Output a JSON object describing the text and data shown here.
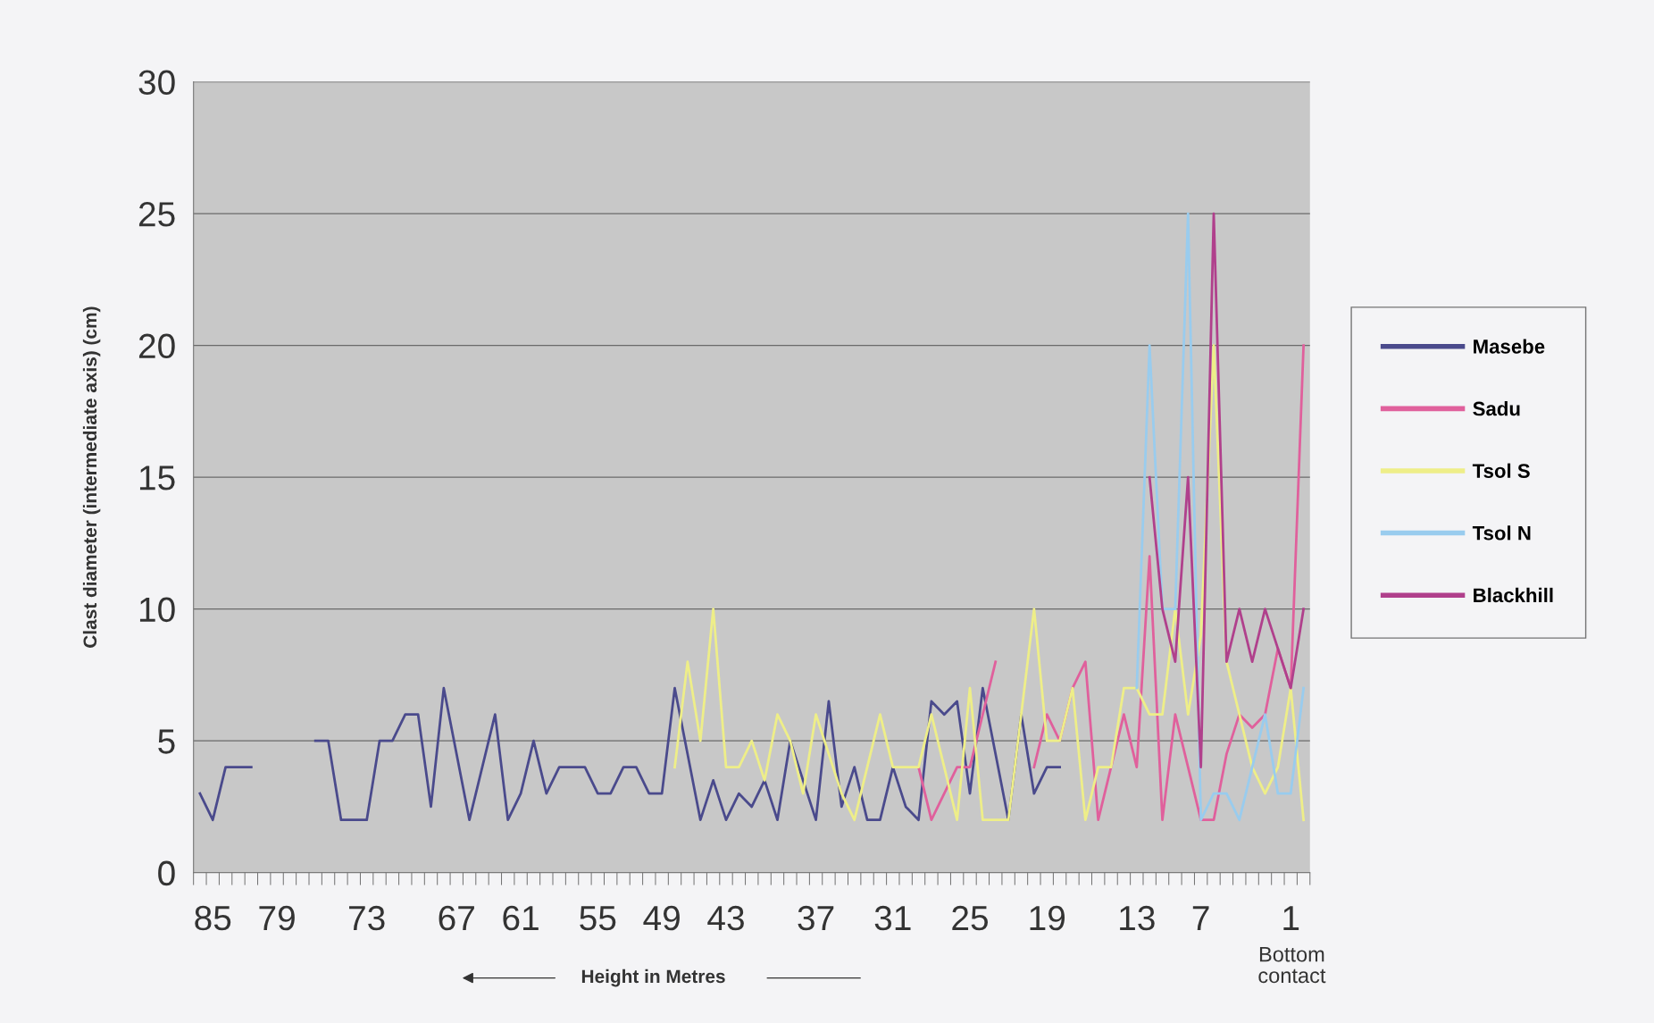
{
  "chart_data": {
    "type": "line",
    "ylabel": "Clast diameter (intermediate axis) (cm)",
    "xlabel": "Height in Metres",
    "categories": [
      null,
      "85",
      null,
      null,
      null,
      null,
      "79",
      null,
      null,
      null,
      null,
      null,
      null,
      "73",
      null,
      null,
      null,
      null,
      null,
      null,
      "67",
      null,
      null,
      null,
      null,
      "61",
      null,
      null,
      null,
      null,
      null,
      "55",
      null,
      null,
      null,
      null,
      "49",
      null,
      null,
      null,
      null,
      "43",
      null,
      null,
      null,
      null,
      null,
      null,
      "37",
      null,
      null,
      null,
      null,
      null,
      "31",
      null,
      null,
      null,
      null,
      null,
      "25",
      null,
      null,
      null,
      null,
      null,
      "19",
      null,
      null,
      null,
      null,
      null,
      null,
      "13",
      null,
      null,
      null,
      null,
      "7",
      null,
      null,
      null,
      null,
      null,
      null,
      "1",
      null
    ],
    "series": [
      {
        "name": "Masebe",
        "color": "#4a4a8c",
        "values": [
          3,
          2,
          4,
          4,
          4,
          null,
          null,
          null,
          null,
          5,
          5,
          2,
          2,
          2,
          5,
          5,
          6,
          6,
          2.5,
          7,
          4.5,
          2,
          4,
          6,
          2,
          3,
          5,
          3,
          4,
          4,
          4,
          3,
          3,
          4,
          4,
          3,
          3,
          7,
          4.5,
          2,
          3.5,
          2,
          3,
          2.5,
          3.5,
          2,
          5,
          3.5,
          2,
          6.5,
          2.5,
          4,
          2,
          2,
          4,
          2.5,
          2,
          6.5,
          6,
          6.5,
          3,
          7,
          4.5,
          2,
          6,
          3,
          4,
          4,
          null,
          null,
          null,
          null,
          null,
          null,
          null,
          null,
          null,
          null,
          null,
          null,
          null,
          null,
          null,
          null,
          null,
          null,
          null
        ]
      },
      {
        "name": "Sadu",
        "color": "#e0609c",
        "values": [
          null,
          null,
          null,
          null,
          null,
          null,
          null,
          null,
          null,
          null,
          null,
          null,
          null,
          null,
          null,
          null,
          null,
          null,
          null,
          null,
          null,
          null,
          null,
          null,
          null,
          null,
          null,
          null,
          null,
          null,
          null,
          null,
          null,
          null,
          null,
          null,
          null,
          null,
          null,
          null,
          null,
          null,
          null,
          null,
          null,
          null,
          null,
          null,
          null,
          null,
          null,
          null,
          null,
          null,
          null,
          null,
          4,
          2,
          3,
          4,
          4,
          6,
          8,
          null,
          null,
          4,
          6,
          5,
          7,
          8,
          2,
          4,
          6,
          4,
          12,
          2,
          6,
          4,
          2,
          2,
          4.5,
          6,
          5.5,
          6,
          8.5,
          7,
          20
        ]
      },
      {
        "name": "Tsol S",
        "color": "#eeee88",
        "values": [
          null,
          null,
          null,
          null,
          null,
          null,
          null,
          null,
          null,
          null,
          null,
          null,
          null,
          null,
          null,
          null,
          null,
          null,
          null,
          null,
          null,
          null,
          null,
          null,
          null,
          null,
          null,
          null,
          null,
          null,
          null,
          null,
          null,
          null,
          null,
          null,
          null,
          4,
          8,
          5,
          10,
          4,
          4,
          5,
          3.5,
          6,
          5,
          3,
          6,
          4.5,
          3,
          2,
          4,
          6,
          4,
          4,
          4,
          6,
          4,
          2,
          7,
          2,
          2,
          2,
          6,
          10,
          5,
          5,
          7,
          2,
          4,
          4,
          7,
          7,
          6,
          6,
          10,
          6,
          9,
          20,
          8,
          6,
          4,
          3,
          4,
          7,
          2
        ]
      },
      {
        "name": "Tsol N",
        "color": "#99ccee",
        "values": [
          null,
          null,
          null,
          null,
          null,
          null,
          null,
          null,
          null,
          null,
          null,
          null,
          null,
          null,
          null,
          null,
          null,
          null,
          null,
          null,
          null,
          null,
          null,
          null,
          null,
          null,
          null,
          null,
          null,
          null,
          null,
          null,
          null,
          null,
          null,
          null,
          null,
          null,
          null,
          null,
          null,
          null,
          null,
          null,
          null,
          null,
          null,
          null,
          null,
          null,
          null,
          null,
          null,
          null,
          null,
          null,
          null,
          null,
          null,
          null,
          null,
          null,
          null,
          null,
          null,
          null,
          null,
          null,
          null,
          null,
          null,
          null,
          null,
          7,
          20,
          10,
          10,
          25,
          2,
          3,
          3,
          2,
          4,
          6,
          3,
          3,
          7
        ]
      },
      {
        "name": "Blackhill",
        "color": "#b0408c",
        "values": [
          null,
          null,
          null,
          null,
          null,
          null,
          null,
          null,
          null,
          null,
          null,
          null,
          null,
          null,
          null,
          null,
          null,
          null,
          null,
          null,
          null,
          null,
          null,
          null,
          null,
          null,
          null,
          null,
          null,
          null,
          null,
          null,
          null,
          null,
          null,
          null,
          null,
          null,
          null,
          null,
          null,
          null,
          null,
          null,
          null,
          null,
          null,
          null,
          null,
          null,
          null,
          null,
          null,
          null,
          null,
          null,
          null,
          null,
          null,
          null,
          null,
          null,
          null,
          null,
          null,
          null,
          null,
          null,
          null,
          null,
          null,
          null,
          null,
          null,
          15,
          10,
          8,
          15,
          4,
          25,
          8,
          10,
          8,
          10,
          8.5,
          7,
          10
        ]
      }
    ],
    "ylim": [
      0,
      30
    ],
    "yticks": [
      0,
      5,
      10,
      15,
      20,
      25,
      30
    ],
    "grid": "y",
    "legend": "right",
    "marker": "none",
    "line_style": "solid",
    "annotations": [
      "Bottom contact"
    ]
  }
}
